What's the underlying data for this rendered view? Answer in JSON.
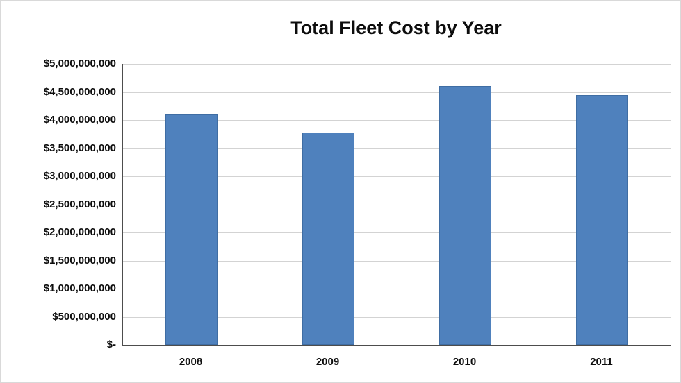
{
  "chart_data": {
    "type": "bar",
    "title": "Total Fleet Cost by Year",
    "categories": [
      "2008",
      "2009",
      "2010",
      "2011"
    ],
    "values": [
      4100000000,
      3775000000,
      4600000000,
      4450000000
    ],
    "xlabel": "",
    "ylabel": "",
    "ylim": [
      0,
      5000000000
    ],
    "ytick_step": 500000000,
    "ytick_labels": [
      "$-",
      "$500,000,000",
      "$1,000,000,000",
      "$1,500,000,000",
      "$2,000,000,000",
      "$2,500,000,000",
      "$3,000,000,000",
      "$3,500,000,000",
      "$4,000,000,000",
      "$4,500,000,000",
      "$5,000,000,000"
    ],
    "grid": true,
    "legend": "none",
    "bar_color": "#4f81bd",
    "bar_border_color": "#3f6da3",
    "gridline_color": "#d3d3d3",
    "axis_color": "#4d4d4d"
  }
}
